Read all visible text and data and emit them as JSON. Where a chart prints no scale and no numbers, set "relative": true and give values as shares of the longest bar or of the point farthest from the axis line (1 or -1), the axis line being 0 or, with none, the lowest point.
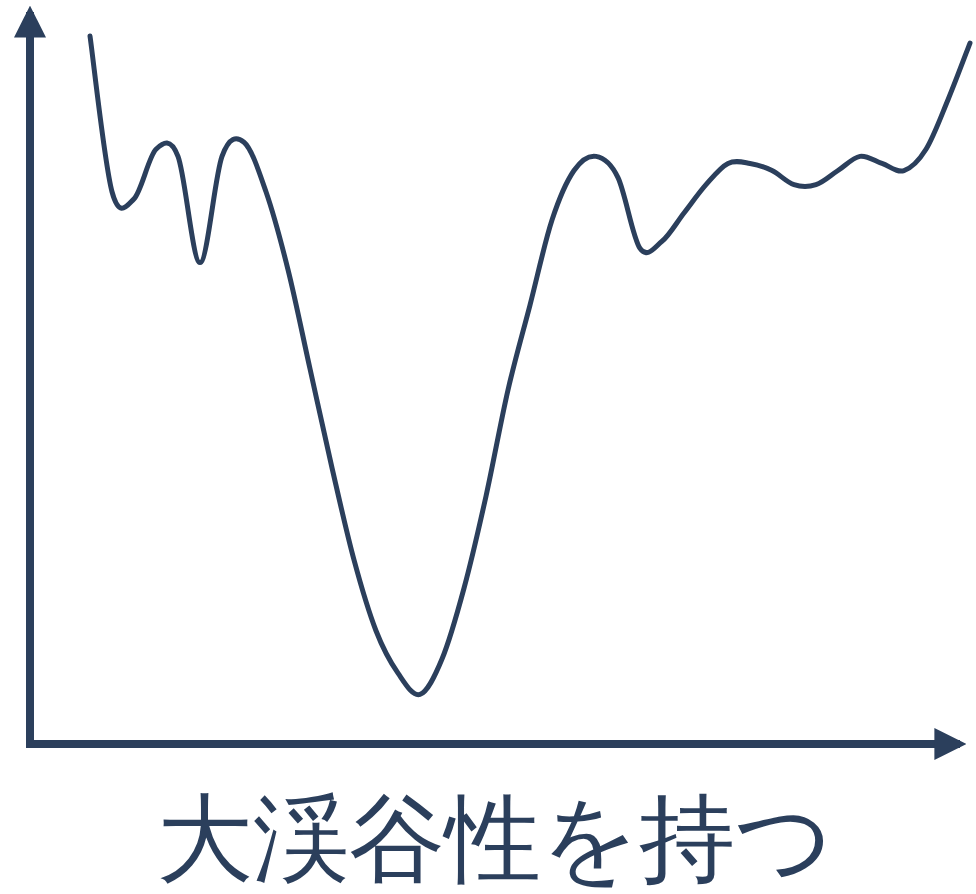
{
  "chart_data": {
    "type": "line",
    "relative": true,
    "xlabel": "大渓谷性を持つ",
    "color": "#2b3f5c",
    "categories": [
      null,
      null,
      null,
      null,
      null,
      null,
      null,
      null,
      null,
      null,
      null,
      null,
      null,
      null,
      null,
      null,
      null,
      null,
      null,
      null,
      null,
      null,
      null,
      null,
      null,
      null,
      null,
      null,
      null,
      null,
      null,
      null,
      null,
      null,
      null,
      null,
      null,
      null,
      null,
      null,
      null
    ],
    "values": [
      1.0,
      0.78,
      0.77,
      0.84,
      0.83,
      0.68,
      0.83,
      0.85,
      0.78,
      0.67,
      0.53,
      0.39,
      0.26,
      0.16,
      0.1,
      0.07,
      0.12,
      0.22,
      0.35,
      0.5,
      0.62,
      0.74,
      0.81,
      0.83,
      0.8,
      0.7,
      0.71,
      0.75,
      0.79,
      0.82,
      0.82,
      0.81,
      0.79,
      0.79,
      0.81,
      0.83,
      0.82,
      0.81,
      0.84,
      0.91,
      0.99
    ]
  }
}
